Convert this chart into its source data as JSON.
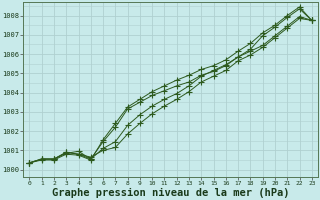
{
  "bg_color": "#c8eaea",
  "grid_color": "#b0d0d0",
  "line_color": "#2d5a1e",
  "marker_color": "#2d5a1e",
  "xlabel": "Graphe pression niveau de la mer (hPa)",
  "xlabel_fontsize": 7.5,
  "ylabel_left_ticks": [
    1000,
    1001,
    1002,
    1003,
    1004,
    1005,
    1006,
    1007,
    1008
  ],
  "xlim": [
    -0.5,
    23.5
  ],
  "ylim": [
    999.6,
    1008.7
  ],
  "xticks": [
    0,
    1,
    2,
    3,
    4,
    5,
    6,
    7,
    8,
    9,
    10,
    11,
    12,
    13,
    14,
    15,
    16,
    17,
    18,
    19,
    20,
    21,
    22,
    23
  ],
  "series": [
    [
      1000.35,
      1000.55,
      1000.55,
      1000.9,
      1000.8,
      1000.65,
      1001.0,
      1001.15,
      1001.85,
      1002.4,
      1002.9,
      1003.3,
      1003.65,
      1004.05,
      1004.55,
      1004.85,
      1005.15,
      1005.65,
      1005.95,
      1006.35,
      1006.85,
      1007.35,
      1007.85,
      1007.75
    ],
    [
      1000.35,
      1000.55,
      1000.55,
      1000.85,
      1000.95,
      1000.55,
      1001.45,
      1002.2,
      1003.15,
      1003.5,
      1003.85,
      1004.1,
      1004.35,
      1004.55,
      1004.9,
      1005.1,
      1005.4,
      1005.85,
      1006.25,
      1006.95,
      1007.4,
      1007.9,
      1008.35,
      1007.75
    ],
    [
      1000.35,
      1000.55,
      1000.55,
      1000.9,
      1000.8,
      1000.55,
      1001.1,
      1001.45,
      1002.3,
      1002.85,
      1003.3,
      1003.65,
      1003.95,
      1004.35,
      1004.85,
      1005.15,
      1005.45,
      1005.85,
      1006.15,
      1006.45,
      1006.95,
      1007.45,
      1007.95,
      1007.75
    ],
    [
      1000.35,
      1000.5,
      1000.5,
      1000.8,
      1000.75,
      1000.5,
      1001.55,
      1002.4,
      1003.25,
      1003.65,
      1004.05,
      1004.35,
      1004.65,
      1004.9,
      1005.2,
      1005.4,
      1005.7,
      1006.15,
      1006.55,
      1007.1,
      1007.5,
      1008.0,
      1008.45,
      1007.75
    ]
  ]
}
